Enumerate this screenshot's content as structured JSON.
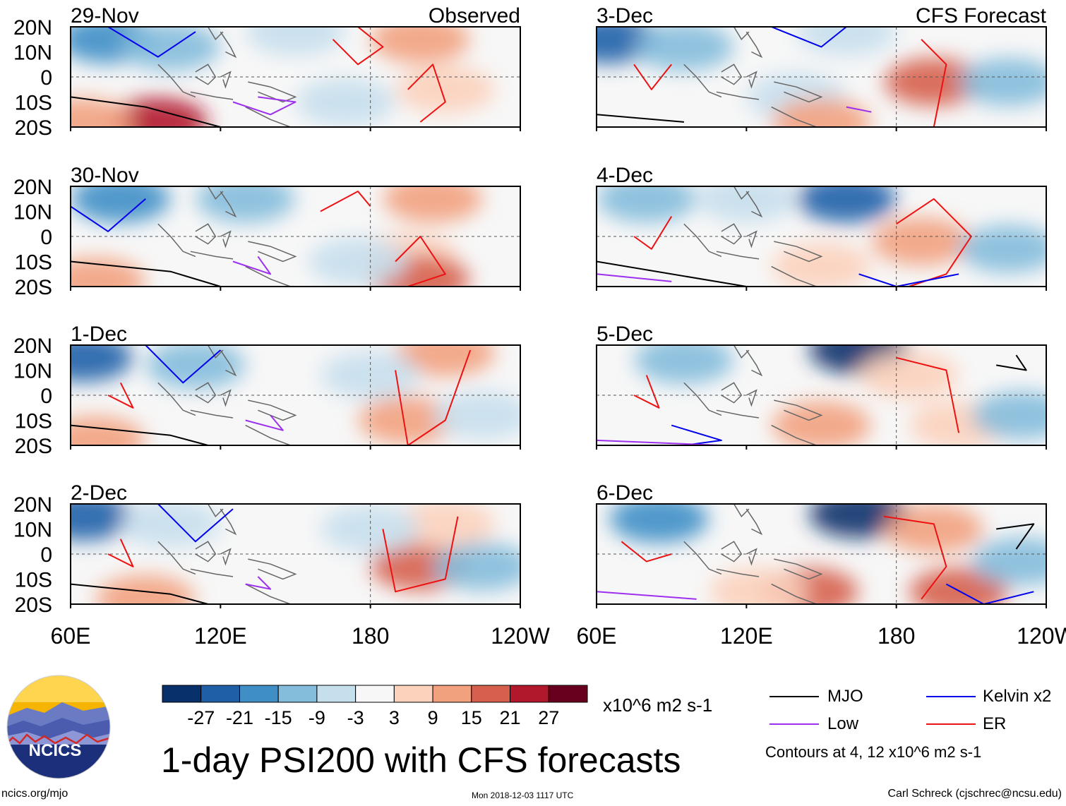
{
  "chart_data": {
    "type": "heatmap",
    "title": "1-day PSI200 with CFS forecasts",
    "units": "x10^6 m2 s-1",
    "columns": [
      {
        "header": "Observed",
        "panels": [
          "29-Nov",
          "30-Nov",
          "1-Dec",
          "2-Dec"
        ]
      },
      {
        "header": "CFS Forecast",
        "panels": [
          "3-Dec",
          "4-Dec",
          "5-Dec",
          "6-Dec"
        ]
      }
    ],
    "lat_ticks": [
      "20N",
      "10N",
      "0",
      "10S",
      "20S"
    ],
    "lon_ticks": [
      "60E",
      "120E",
      "180",
      "120W"
    ],
    "lat_range": [
      -20,
      20
    ],
    "lon_range": [
      60,
      240
    ],
    "colorbar": {
      "labels": [
        "-27",
        "-21",
        "-15",
        "-9",
        "-3",
        "3",
        "9",
        "15",
        "21",
        "27"
      ],
      "colors": [
        "#08306b",
        "#1f5fa8",
        "#3f8fc6",
        "#84bcdb",
        "#c6dfed",
        "#f7f7f7",
        "#fcd2bd",
        "#f2a17f",
        "#d6604d",
        "#b2182b",
        "#67001f"
      ]
    },
    "contour_legend": [
      {
        "name": "MJO",
        "color": "#000000"
      },
      {
        "name": "Kelvin x2",
        "color": "#0000ee"
      },
      {
        "name": "Low",
        "color": "#9d30ee"
      },
      {
        "name": "ER",
        "color": "#ee1111"
      }
    ],
    "contour_note": "Contours at 4, 12 x10^6 m2 s-1"
  },
  "branding": {
    "logo": "NCICS",
    "url": "ncics.org/mjo",
    "author": "Carl Schreck (cjschrec@ncsu.edu)"
  },
  "timestamp": "Mon 2018-12-03 1117 UTC"
}
